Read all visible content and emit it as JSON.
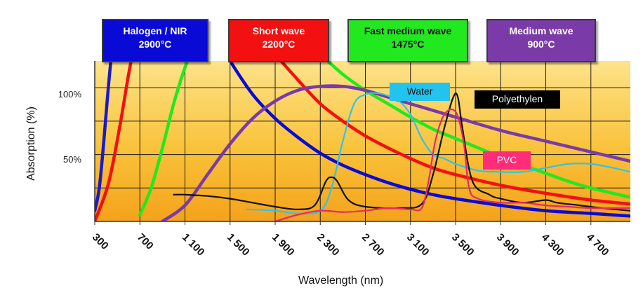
{
  "chart_data": {
    "type": "line",
    "title": "",
    "xlabel": "Wavelength (nm)",
    "ylabel": "Absorption (%)",
    "xlim": [
      300,
      5050
    ],
    "ylim": [
      0,
      120
    ],
    "x_ticks": [
      "300",
      "700",
      "1 100",
      "1 500",
      "1 900",
      "2 300",
      "2 700",
      "3 100",
      "3 500",
      "3 900",
      "4 300",
      "4 700"
    ],
    "x_tick_values": [
      300,
      700,
      1100,
      1500,
      1900,
      2300,
      2700,
      3100,
      3500,
      3900,
      4300,
      4700
    ],
    "y_ticks": [
      {
        "label": "100%",
        "value": 100
      },
      {
        "label": "50%",
        "value": 50
      }
    ],
    "grid": true,
    "background": "orange-yellow gradient",
    "emitters": [
      {
        "label": "Halogen / NIR",
        "temperature": "2900°C",
        "color": "#0a0ad6"
      },
      {
        "label": "Short wave",
        "temperature": "2200°C",
        "color": "#f21010"
      },
      {
        "label": "Fast medium wave",
        "temperature": "1475°C",
        "color": "#22e81f"
      },
      {
        "label": "Medium wave",
        "temperature": "900°C",
        "color": "#7a3aa8"
      }
    ],
    "series": [
      {
        "name": "Halogen / NIR",
        "color": "#1a1ac8",
        "points": [
          [
            300,
            8
          ],
          [
            340,
            25
          ],
          [
            380,
            60
          ],
          [
            420,
            100
          ],
          [
            460,
            135
          ]
        ]
      },
      {
        "name": "Short wave",
        "color": "#f21010",
        "points": [
          [
            300,
            0
          ],
          [
            420,
            28
          ],
          [
            520,
            70
          ],
          [
            600,
            110
          ],
          [
            660,
            135
          ]
        ]
      },
      {
        "name": "Fast medium wave",
        "color": "#22e81f",
        "points": [
          [
            700,
            5
          ],
          [
            800,
            25
          ],
          [
            900,
            55
          ],
          [
            1000,
            88
          ],
          [
            1100,
            115
          ],
          [
            1200,
            135
          ]
        ]
      },
      {
        "name": "Medium wave",
        "color": "#7a3aa8",
        "points": [
          [
            900,
            0
          ],
          [
            1100,
            12
          ],
          [
            1300,
            35
          ],
          [
            1500,
            58
          ],
          [
            1700,
            77
          ],
          [
            1900,
            90
          ],
          [
            2100,
            98
          ],
          [
            2300,
            101
          ],
          [
            2500,
            101
          ],
          [
            2700,
            98
          ],
          [
            2900,
            93
          ],
          [
            3100,
            88
          ],
          [
            3300,
            83
          ],
          [
            3500,
            78
          ],
          [
            3900,
            68
          ],
          [
            4300,
            60
          ],
          [
            4700,
            52
          ],
          [
            5050,
            45
          ]
        ]
      },
      {
        "name": "Water",
        "color": "#2ec4ea",
        "points": [
          [
            1650,
            9
          ],
          [
            1900,
            8
          ],
          [
            2100,
            6
          ],
          [
            2300,
            8
          ],
          [
            2400,
            25
          ],
          [
            2500,
            60
          ],
          [
            2600,
            88
          ],
          [
            2700,
            95
          ],
          [
            2800,
            96
          ],
          [
            2900,
            94
          ],
          [
            3000,
            90
          ],
          [
            3100,
            80
          ],
          [
            3200,
            62
          ],
          [
            3300,
            50
          ],
          [
            3400,
            47
          ],
          [
            3500,
            43
          ],
          [
            3700,
            38
          ],
          [
            3900,
            37
          ],
          [
            4100,
            37
          ],
          [
            4300,
            40
          ],
          [
            4500,
            43
          ],
          [
            4700,
            43
          ],
          [
            4900,
            40
          ],
          [
            5050,
            37
          ]
        ]
      },
      {
        "name": "Polyethylen",
        "color": "#111111",
        "points": [
          [
            1000,
            20
          ],
          [
            1100,
            20
          ],
          [
            1300,
            19
          ],
          [
            1500,
            17
          ],
          [
            1700,
            14
          ],
          [
            1900,
            11
          ],
          [
            2100,
            9
          ],
          [
            2250,
            12
          ],
          [
            2350,
            30
          ],
          [
            2400,
            33
          ],
          [
            2450,
            30
          ],
          [
            2550,
            16
          ],
          [
            2700,
            11
          ],
          [
            3000,
            10
          ],
          [
            3200,
            13
          ],
          [
            3300,
            35
          ],
          [
            3400,
            70
          ],
          [
            3480,
            93
          ],
          [
            3520,
            93
          ],
          [
            3560,
            70
          ],
          [
            3650,
            30
          ],
          [
            3800,
            20
          ],
          [
            3900,
            17
          ],
          [
            4100,
            14
          ],
          [
            4300,
            16
          ],
          [
            4400,
            14
          ],
          [
            4600,
            12
          ],
          [
            4800,
            10
          ],
          [
            5050,
            8
          ]
        ]
      },
      {
        "name": "PVC",
        "color": "#e8286a",
        "points": [
          [
            1900,
            0
          ],
          [
            2100,
            5
          ],
          [
            2300,
            8
          ],
          [
            2500,
            7
          ],
          [
            2700,
            8
          ],
          [
            2900,
            10
          ],
          [
            3100,
            9
          ],
          [
            3200,
            10
          ],
          [
            3260,
            30
          ],
          [
            3320,
            60
          ],
          [
            3400,
            80
          ],
          [
            3500,
            82
          ],
          [
            3570,
            60
          ],
          [
            3620,
            25
          ],
          [
            3700,
            17
          ],
          [
            3900,
            14
          ],
          [
            4100,
            14
          ],
          [
            4300,
            12
          ],
          [
            4500,
            11
          ],
          [
            4700,
            10
          ],
          [
            5050,
            10
          ]
        ]
      }
    ],
    "tube_curves": [
      {
        "name": "blue-decay",
        "color": "#0a0ad6",
        "points": [
          [
            1400,
            135
          ],
          [
            1500,
            120
          ],
          [
            1700,
            95
          ],
          [
            1900,
            77
          ],
          [
            2100,
            63
          ],
          [
            2300,
            51
          ],
          [
            2500,
            42
          ],
          [
            2700,
            35
          ],
          [
            2900,
            29
          ],
          [
            3100,
            24
          ],
          [
            3300,
            20
          ],
          [
            3500,
            17
          ],
          [
            3900,
            12
          ],
          [
            4300,
            8
          ],
          [
            4700,
            6
          ],
          [
            5050,
            4
          ]
        ]
      },
      {
        "name": "red-decay",
        "color": "#f21010",
        "points": [
          [
            1800,
            135
          ],
          [
            1900,
            125
          ],
          [
            2100,
            106
          ],
          [
            2300,
            88
          ],
          [
            2500,
            75
          ],
          [
            2700,
            64
          ],
          [
            2900,
            55
          ],
          [
            3100,
            47
          ],
          [
            3300,
            40
          ],
          [
            3500,
            35
          ],
          [
            3900,
            27
          ],
          [
            4300,
            21
          ],
          [
            4700,
            16
          ],
          [
            5050,
            13
          ]
        ]
      },
      {
        "name": "green-decay",
        "color": "#22e81f",
        "points": [
          [
            2150,
            135
          ],
          [
            2300,
            125
          ],
          [
            2500,
            110
          ],
          [
            2700,
            98
          ],
          [
            2900,
            88
          ],
          [
            3100,
            78
          ],
          [
            3300,
            69
          ],
          [
            3500,
            62
          ],
          [
            3700,
            55
          ],
          [
            3900,
            48
          ],
          [
            4100,
            42
          ],
          [
            4300,
            36
          ],
          [
            4500,
            30
          ],
          [
            4700,
            25
          ],
          [
            5050,
            18
          ]
        ]
      }
    ],
    "annotations": [
      {
        "text": "Water",
        "bg": "#22c4ee",
        "x": 2810,
        "y": 104
      },
      {
        "text": "Polyethylen",
        "bg": "#000000",
        "x": 3800,
        "y": 97
      },
      {
        "text": "PVC",
        "bg": "#ff2c7a",
        "x": 3790,
        "y": 47
      }
    ]
  }
}
